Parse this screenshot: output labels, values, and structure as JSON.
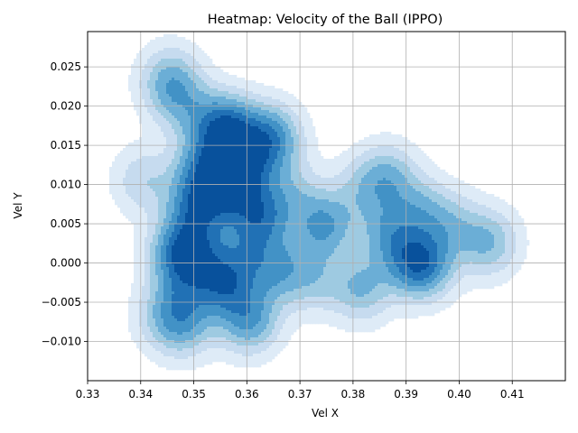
{
  "chart_data": {
    "type": "heatmap",
    "title": "Heatmap: Velocity of the Ball (IPPO)",
    "xlabel": "Vel X",
    "ylabel": "Vel Y",
    "xlim": [
      0.33,
      0.42
    ],
    "ylim": [
      -0.015,
      0.0295
    ],
    "xticks": [
      0.33,
      0.34,
      0.35,
      0.36,
      0.37,
      0.38,
      0.39,
      0.4,
      0.41
    ],
    "xtick_labels": [
      "0.33",
      "0.34",
      "0.35",
      "0.36",
      "0.37",
      "0.38",
      "0.39",
      "0.40",
      "0.41"
    ],
    "yticks": [
      -0.01,
      -0.005,
      0.0,
      0.005,
      0.01,
      0.015,
      0.02,
      0.025
    ],
    "ytick_labels": [
      "−0.010",
      "−0.005",
      "0.000",
      "0.005",
      "0.010",
      "0.015",
      "0.020",
      "0.025"
    ],
    "grid": true,
    "colormap": [
      "#deebf7",
      "#c6dbef",
      "#9ecae1",
      "#6baed6",
      "#4292c6",
      "#2171b5",
      "#08519c"
    ],
    "density_peaks": [
      {
        "x": 0.3455,
        "y": 0.0233,
        "w": 0.55
      },
      {
        "x": 0.3475,
        "y": 0.0205,
        "w": 0.35
      },
      {
        "x": 0.353,
        "y": 0.0178,
        "w": 0.45
      },
      {
        "x": 0.357,
        "y": 0.0168,
        "w": 0.95
      },
      {
        "x": 0.3645,
        "y": 0.0158,
        "w": 0.9
      },
      {
        "x": 0.352,
        "y": 0.0118,
        "w": 0.85
      },
      {
        "x": 0.359,
        "y": 0.0118,
        "w": 1.0
      },
      {
        "x": 0.3405,
        "y": 0.0105,
        "w": 0.35
      },
      {
        "x": 0.3505,
        "y": 0.0068,
        "w": 0.9
      },
      {
        "x": 0.3565,
        "y": 0.0085,
        "w": 0.45
      },
      {
        "x": 0.3625,
        "y": 0.0058,
        "w": 0.9
      },
      {
        "x": 0.3745,
        "y": 0.0048,
        "w": 0.75
      },
      {
        "x": 0.3685,
        "y": 0.009,
        "w": 0.35
      },
      {
        "x": 0.3865,
        "y": 0.0108,
        "w": 0.55
      },
      {
        "x": 0.3815,
        "y": 0.0092,
        "w": 0.3
      },
      {
        "x": 0.3925,
        "y": 0.0068,
        "w": 0.45
      },
      {
        "x": 0.3865,
        "y": 0.0038,
        "w": 0.55
      },
      {
        "x": 0.3985,
        "y": 0.0048,
        "w": 0.4
      },
      {
        "x": 0.4055,
        "y": 0.0026,
        "w": 0.55
      },
      {
        "x": 0.3465,
        "y": 0.0012,
        "w": 0.5
      },
      {
        "x": 0.3495,
        "y": 0.001,
        "w": 0.9
      },
      {
        "x": 0.3585,
        "y": 0.0008,
        "w": 0.45
      },
      {
        "x": 0.3655,
        "y": -0.0007,
        "w": 0.65
      },
      {
        "x": 0.3725,
        "y": -0.002,
        "w": 0.4
      },
      {
        "x": 0.3815,
        "y": -0.0032,
        "w": 0.55
      },
      {
        "x": 0.3905,
        "y": 0.0002,
        "w": 0.5
      },
      {
        "x": 0.3935,
        "y": -0.0002,
        "w": 0.8
      },
      {
        "x": 0.3555,
        "y": -0.0029,
        "w": 0.85
      },
      {
        "x": 0.3475,
        "y": -0.0045,
        "w": 0.4
      },
      {
        "x": 0.3445,
        "y": -0.007,
        "w": 0.35
      },
      {
        "x": 0.3485,
        "y": -0.008,
        "w": 0.45
      },
      {
        "x": 0.3605,
        "y": -0.0072,
        "w": 0.75
      }
    ]
  }
}
